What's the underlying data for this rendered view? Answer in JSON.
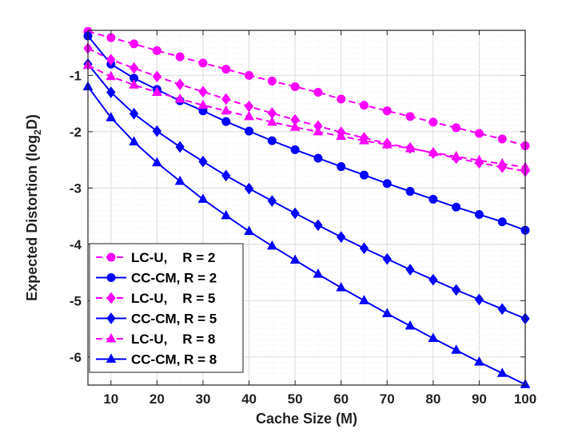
{
  "chart_data": {
    "type": "line",
    "title": "",
    "xlabel": "Cache Size (M)",
    "ylabel_main": "Expected Distortion (log",
    "ylabel_sub": "2",
    "ylabel_tail": "D)",
    "xlim": [
      5,
      100
    ],
    "ylim": [
      -6.5,
      -0.2
    ],
    "xticks": [
      10,
      20,
      30,
      40,
      50,
      60,
      70,
      80,
      90,
      100
    ],
    "yticks": [
      -1,
      -2,
      -3,
      -4,
      -5,
      -6
    ],
    "grid": true,
    "legend_position": "bottom-left",
    "x": [
      5,
      10,
      15,
      20,
      25,
      30,
      35,
      40,
      45,
      50,
      55,
      60,
      65,
      70,
      75,
      80,
      85,
      90,
      95,
      100
    ],
    "series": [
      {
        "name": "LC-U,    R = 2",
        "color": "#ff00ff",
        "dash": "dashed",
        "marker": "circle",
        "values": [
          -0.22,
          -0.33,
          -0.44,
          -0.56,
          -0.67,
          -0.78,
          -0.89,
          -1.0,
          -1.1,
          -1.2,
          -1.3,
          -1.42,
          -1.53,
          -1.63,
          -1.73,
          -1.83,
          -1.93,
          -2.03,
          -2.13,
          -2.25
        ]
      },
      {
        "name": "CC-CM, R = 2",
        "color": "#0000ff",
        "dash": "solid",
        "marker": "circle",
        "values": [
          -0.3,
          -0.8,
          -1.05,
          -1.25,
          -1.45,
          -1.63,
          -1.82,
          -1.99,
          -2.16,
          -2.32,
          -2.47,
          -2.62,
          -2.77,
          -2.92,
          -3.06,
          -3.2,
          -3.34,
          -3.47,
          -3.6,
          -3.75
        ]
      },
      {
        "name": "LC-U,    R = 5",
        "color": "#ff00ff",
        "dash": "dashed",
        "marker": "diamond",
        "values": [
          -0.52,
          -0.72,
          -0.87,
          -1.02,
          -1.16,
          -1.29,
          -1.42,
          -1.55,
          -1.67,
          -1.79,
          -1.9,
          -2.01,
          -2.11,
          -2.21,
          -2.29,
          -2.38,
          -2.47,
          -2.55,
          -2.63,
          -2.7
        ]
      },
      {
        "name": "CC-CM, R = 5",
        "color": "#0000ff",
        "dash": "solid",
        "marker": "diamond",
        "values": [
          -0.8,
          -1.3,
          -1.68,
          -1.99,
          -2.27,
          -2.53,
          -2.78,
          -3.01,
          -3.23,
          -3.45,
          -3.66,
          -3.87,
          -4.07,
          -4.26,
          -4.45,
          -4.63,
          -4.81,
          -4.98,
          -5.15,
          -5.32
        ]
      },
      {
        "name": "LC-U,    R = 8",
        "color": "#ff00ff",
        "dash": "dashed",
        "marker": "triangle",
        "values": [
          -0.82,
          -1.02,
          -1.17,
          -1.3,
          -1.42,
          -1.53,
          -1.63,
          -1.73,
          -1.83,
          -1.92,
          -2.0,
          -2.08,
          -2.16,
          -2.23,
          -2.3,
          -2.37,
          -2.44,
          -2.51,
          -2.57,
          -2.63
        ]
      },
      {
        "name": "CC-CM, R = 8",
        "color": "#0000ff",
        "dash": "solid",
        "marker": "triangle",
        "values": [
          -1.2,
          -1.75,
          -2.18,
          -2.55,
          -2.88,
          -3.2,
          -3.49,
          -3.77,
          -4.03,
          -4.28,
          -4.53,
          -4.77,
          -5.0,
          -5.23,
          -5.45,
          -5.67,
          -5.88,
          -6.09,
          -6.29,
          -6.49
        ]
      }
    ]
  }
}
